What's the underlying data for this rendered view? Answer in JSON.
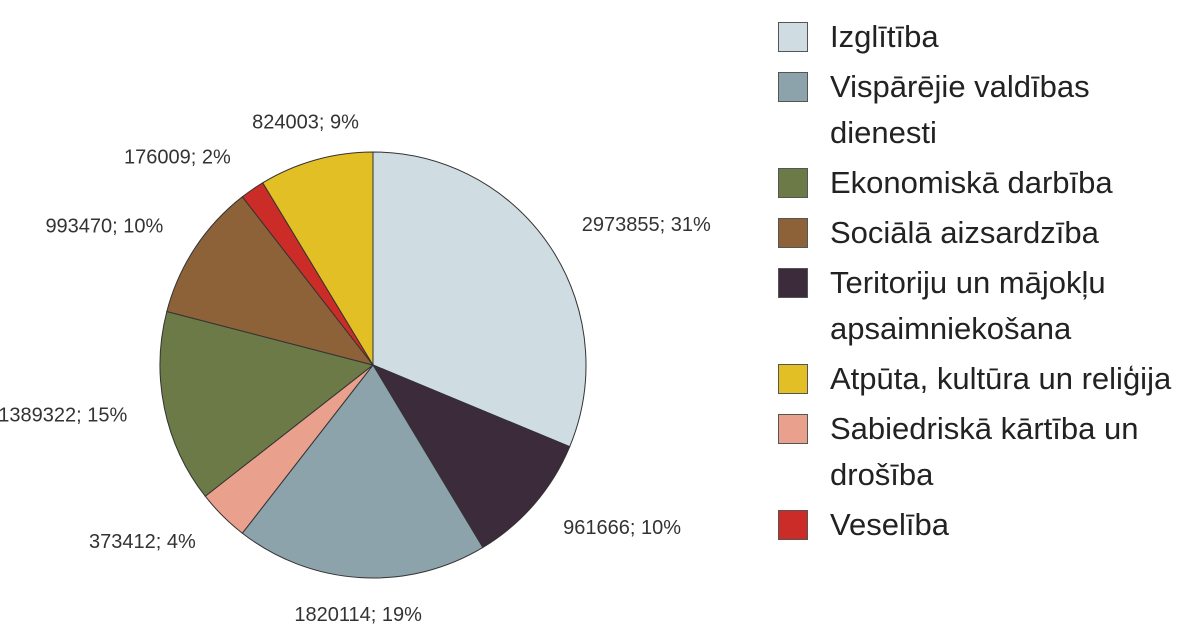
{
  "chart_data": {
    "type": "pie",
    "categories": [
      "Izglītība",
      "Teritoriju un mājokļu apsaimniekošana",
      "Vispārējie valdības dienesti",
      "Sabiedriskā kārtība un drošība",
      "Ekonomiskā darbība",
      "Sociālā aizsardzība",
      "Veselība",
      "Atpūta, kultūra un reliģija"
    ],
    "values": [
      2973855,
      961666,
      1820114,
      373412,
      1389322,
      993470,
      176009,
      824003
    ],
    "value_labels": [
      "2973855; 31%",
      "961666; 10%",
      "1820114; 19%",
      "373412; 4%",
      "1389322; 15%",
      "993470; 10%",
      "176009; 2%",
      "824003; 9%"
    ],
    "colors": [
      "#cfdde3",
      "#3b2b3b",
      "#8da3ac",
      "#e9a08c",
      "#6b7a47",
      "#8e6239",
      "#cc2c27",
      "#e2bf25"
    ],
    "legend": [
      "Izglītība",
      "Vispārējie valdības dienesti",
      "Ekonomiskā darbība",
      "Sociālā aizsardzība",
      "Teritoriju un mājokļu apsaimniekošana",
      "Atpūta, kultūra un reliģija",
      "Sabiedriskā kārtība un drošība",
      "Veselība"
    ]
  }
}
